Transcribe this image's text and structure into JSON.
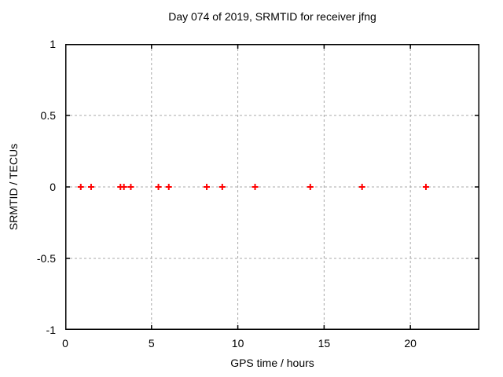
{
  "chart_data": {
    "type": "scatter",
    "title": "Day 074 of 2019, SRMTID for receiver jfng",
    "xlabel": "GPS time / hours",
    "ylabel": "SRMTID / TECUs",
    "xlim": [
      0,
      24
    ],
    "ylim": [
      -1,
      1
    ],
    "xticks": [
      0,
      5,
      10,
      15,
      20
    ],
    "yticks": [
      1,
      0.5,
      0,
      -0.5,
      -1
    ],
    "grid": true,
    "grid_style": "dashed",
    "grid_color": "#a8a8a8",
    "border_color": "#000000",
    "background_color": "#ffffff",
    "legend": "none",
    "series": [
      {
        "name": "SRMTID",
        "marker": "plus",
        "color": "#ff0000",
        "x": [
          0.9,
          1.5,
          3.2,
          3.4,
          3.8,
          5.4,
          6.0,
          8.2,
          9.1,
          11.0,
          14.2,
          17.2,
          20.9
        ],
        "y": [
          0,
          0,
          0,
          0,
          0,
          0,
          0,
          0,
          0,
          0,
          0,
          0,
          0
        ]
      }
    ]
  }
}
